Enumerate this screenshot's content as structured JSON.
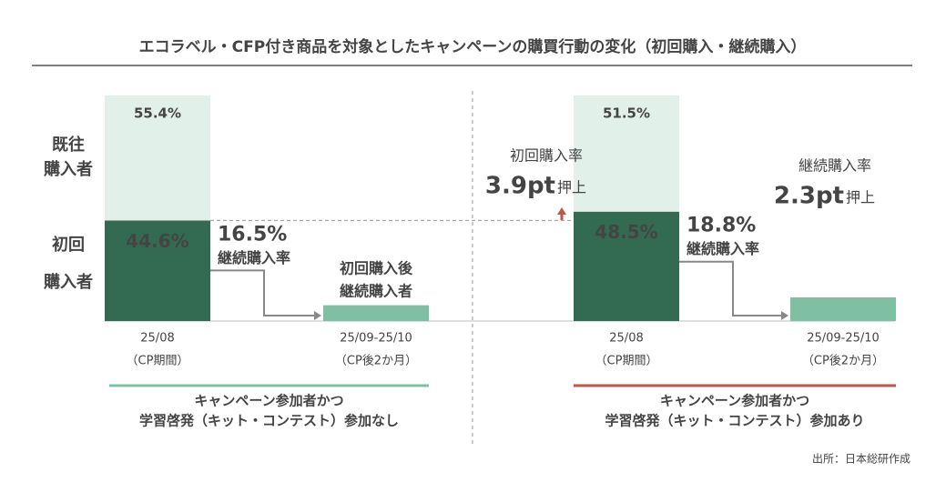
{
  "chart_data": {
    "type": "bar",
    "title": "エコラベル・CFP付き商品を対象としたキャンペーンの購買行動の変化（初回購入・継続購入）",
    "row_labels": [
      [
        "既往",
        "購入者"
      ],
      [
        "初回",
        "購入者"
      ]
    ],
    "colors": {
      "first_time": "#336b52",
      "existing": "#e2f0ea",
      "continuing": "#7fbfa3"
    },
    "ylim": [
      0,
      100
    ],
    "panels": [
      {
        "categories": [
          [
            "25/08",
            "（CP期間）"
          ],
          [
            "25/09-25/10",
            "（CP後2か月）"
          ]
        ],
        "first_time": 44.6,
        "first_time_label": "44.6%",
        "existing": 55.4,
        "existing_label": "55.4%",
        "continuing": 7.0,
        "rate": 16.5,
        "rate_label": "16.5%",
        "rate_name": "継続購入率",
        "continuing_name": [
          "初回購入後",
          "継続購入者"
        ],
        "group": [
          "キャンペーン参加者かつ",
          "学習啓発（キット・コンテスト）参加なし"
        ],
        "group_color": "#7fbfa3",
        "annotations": []
      },
      {
        "categories": [
          [
            "25/08",
            "（CP期間）"
          ],
          [
            "25/09-25/10",
            "（CP後2か月）"
          ]
        ],
        "first_time": 48.5,
        "first_time_label": "48.5%",
        "existing": 51.5,
        "existing_label": "51.5%",
        "continuing": 10.5,
        "rate": 18.8,
        "rate_label": "18.8%",
        "rate_name": "継続購入率",
        "group": [
          "キャンペーン参加者かつ",
          "学習啓発（キット・コンテスト）参加あり"
        ],
        "group_color": "#c0564a",
        "annotations": [
          {
            "name": "初回購入率",
            "value": 3.9,
            "value_label": "3.9pt",
            "suffix": "押上"
          },
          {
            "name": "継続購入率",
            "value": 2.3,
            "value_label": "2.3pt",
            "suffix": "押上"
          }
        ]
      }
    ],
    "source": "出所：日本総研作成"
  }
}
